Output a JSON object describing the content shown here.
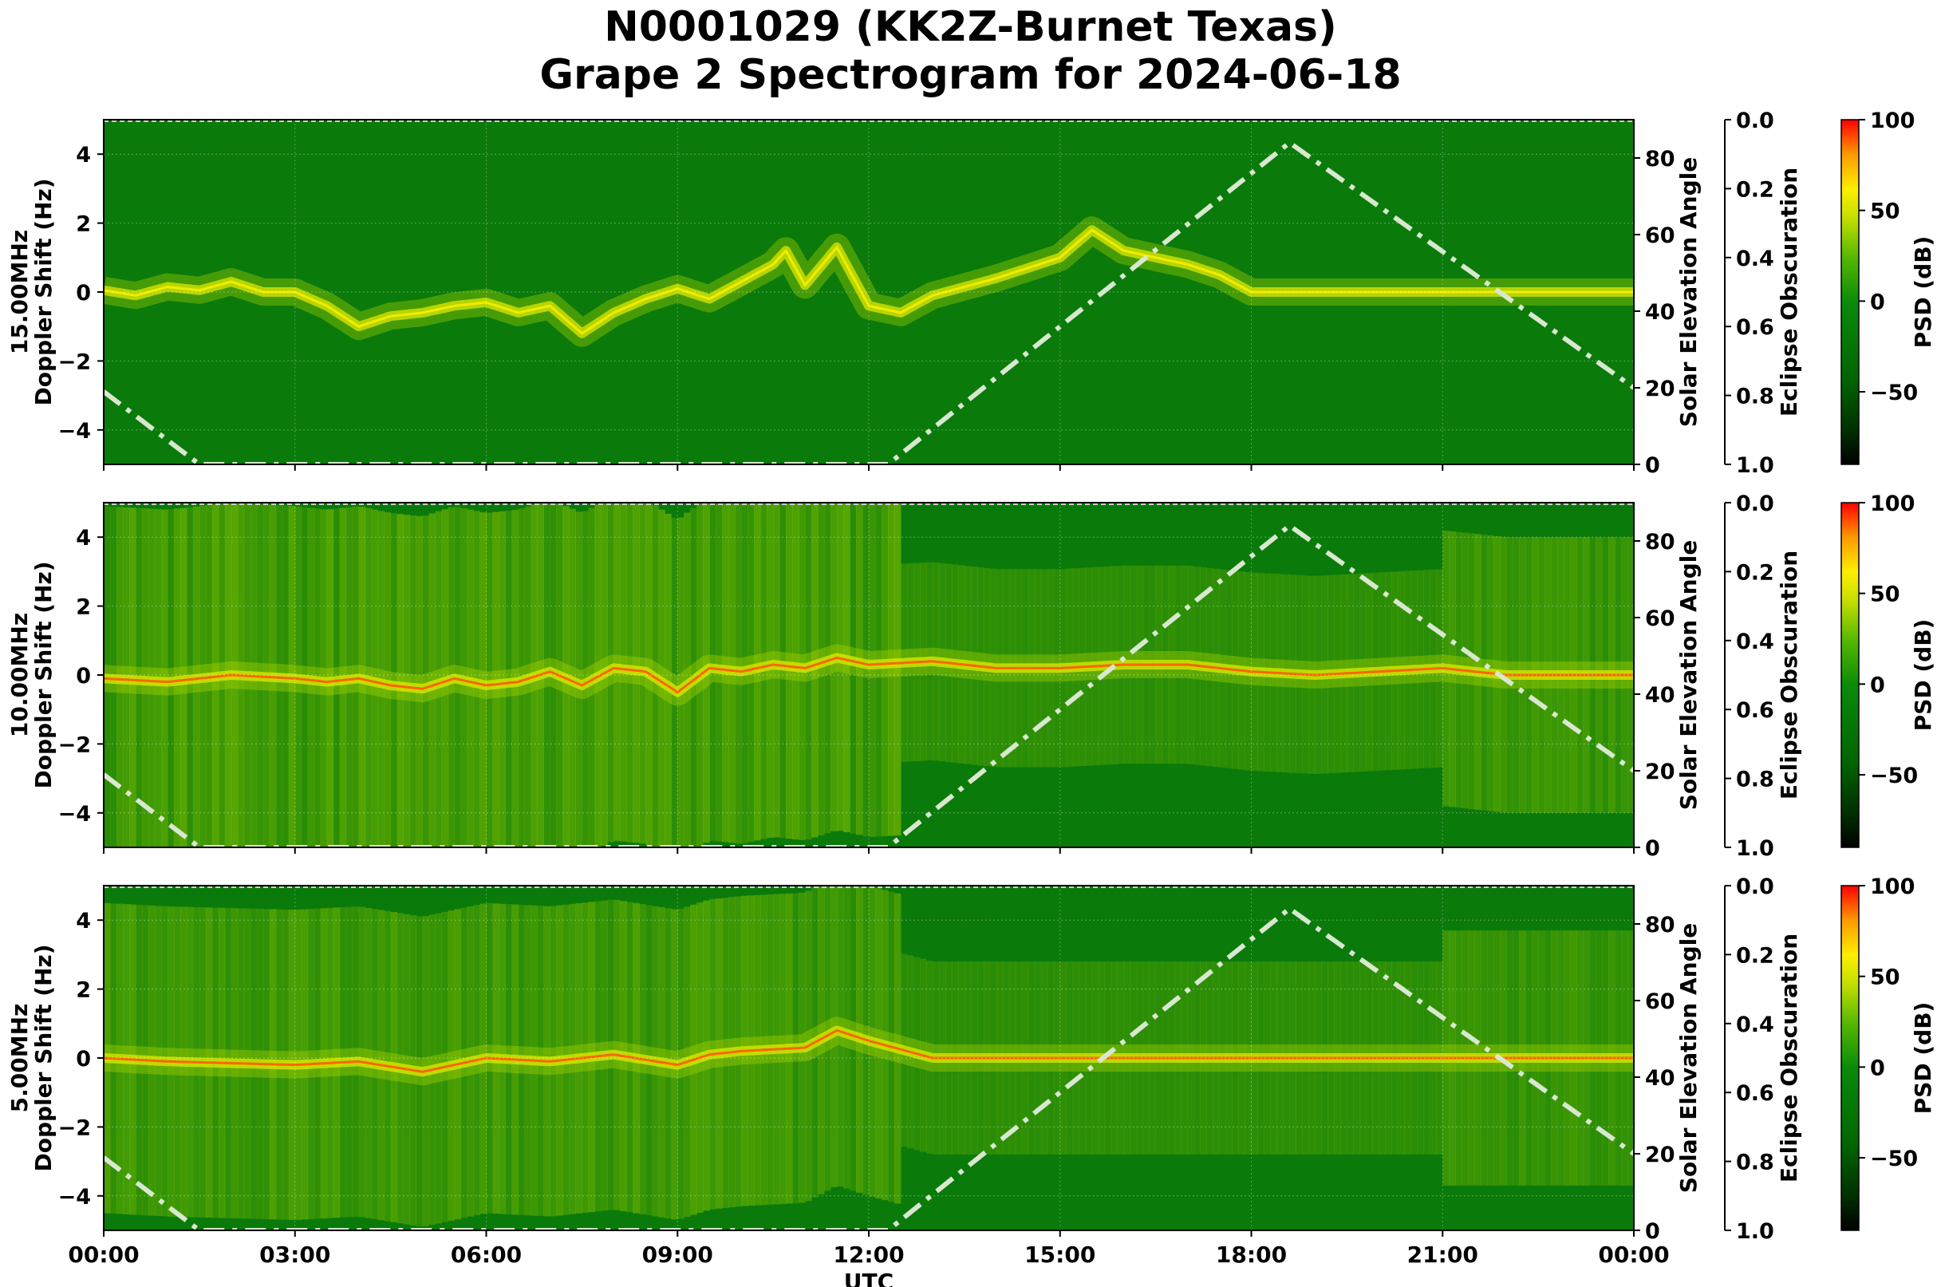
{
  "figure": {
    "title_line1": "N0001029 (KK2Z-Burnet Texas)",
    "title_line2": "Grape 2 Spectrogram for 2024-06-18",
    "x_axis_label": "UTC",
    "x_tick_labels": [
      "00:00",
      "03:00",
      "06:00",
      "09:00",
      "12:00",
      "15:00",
      "18:00",
      "21:00",
      "00:00"
    ]
  },
  "chart_data": [
    {
      "type": "heatmap",
      "frequency_label": "15.00MHz",
      "ylabel": "Doppler Shift (Hz)",
      "ylim": [
        -5,
        5
      ],
      "y_ticks": [
        -4,
        -2,
        0,
        2,
        4
      ],
      "y_tick_labels": [
        "−4",
        "−2",
        "0",
        "2",
        "4"
      ],
      "xlim_hours": [
        0,
        24
      ],
      "right_axis": {
        "label": "Solar Elevation Angle",
        "range": [
          0,
          90
        ],
        "ticks": [
          0,
          20,
          40,
          60,
          80
        ],
        "tick_labels": [
          "0",
          "20",
          "40",
          "60",
          "80"
        ]
      },
      "eclipse_axis": {
        "label": "Eclipse Obscuration",
        "range": [
          0.0,
          1.0
        ],
        "inverted": true,
        "tick_labels": [
          "0.0",
          "0.2",
          "0.4",
          "0.6",
          "0.8",
          "1.0"
        ]
      },
      "colorbar": {
        "label": "PSD (dB)",
        "range": [
          -90,
          100
        ],
        "ticks": [
          100,
          50,
          0,
          -50
        ],
        "tick_labels": [
          "100",
          "50",
          "0",
          "−50"
        ]
      },
      "noise_level": 0.0,
      "carrier_trace": [
        [
          0,
          0.05
        ],
        [
          0.5,
          -0.1
        ],
        [
          1,
          0.15
        ],
        [
          1.5,
          0.05
        ],
        [
          2,
          0.3
        ],
        [
          2.5,
          0.0
        ],
        [
          3,
          0.0
        ],
        [
          3.5,
          -0.4
        ],
        [
          4,
          -1.0
        ],
        [
          4.5,
          -0.7
        ],
        [
          5,
          -0.6
        ],
        [
          5.5,
          -0.4
        ],
        [
          6,
          -0.3
        ],
        [
          6.5,
          -0.6
        ],
        [
          7,
          -0.4
        ],
        [
          7.5,
          -1.2
        ],
        [
          8,
          -0.6
        ],
        [
          8.5,
          -0.2
        ],
        [
          9,
          0.1
        ],
        [
          9.5,
          -0.2
        ],
        [
          10,
          0.3
        ],
        [
          10.5,
          0.8
        ],
        [
          10.7,
          1.2
        ],
        [
          11,
          0.2
        ],
        [
          11.5,
          1.3
        ],
        [
          12,
          -0.4
        ],
        [
          12.5,
          -0.6
        ],
        [
          13,
          -0.1
        ],
        [
          14,
          0.4
        ],
        [
          15,
          1.0
        ],
        [
          15.5,
          1.8
        ],
        [
          16,
          1.2
        ],
        [
          16.5,
          1.0
        ],
        [
          17,
          0.8
        ],
        [
          17.5,
          0.5
        ],
        [
          18,
          0.0
        ],
        [
          19,
          0.0
        ],
        [
          20,
          0.0
        ],
        [
          24,
          0.0
        ]
      ],
      "solar_elevation": [
        [
          0,
          19
        ],
        [
          1.5,
          0
        ],
        [
          12.3,
          0
        ],
        [
          18.6,
          84
        ],
        [
          24,
          20
        ]
      ]
    },
    {
      "type": "heatmap",
      "frequency_label": "10.00MHz",
      "ylabel": "Doppler Shift (Hz)",
      "ylim": [
        -5,
        5
      ],
      "y_ticks": [
        -4,
        -2,
        0,
        2,
        4
      ],
      "y_tick_labels": [
        "−4",
        "−2",
        "0",
        "2",
        "4"
      ],
      "xlim_hours": [
        0,
        24
      ],
      "right_axis": {
        "label": "Solar Elevation Angle",
        "range": [
          0,
          90
        ],
        "ticks": [
          0,
          20,
          40,
          60,
          80
        ],
        "tick_labels": [
          "0",
          "20",
          "40",
          "60",
          "80"
        ]
      },
      "eclipse_axis": {
        "label": "Eclipse Obscuration",
        "range": [
          0.0,
          1.0
        ],
        "inverted": true,
        "tick_labels": [
          "0.0",
          "0.2",
          "0.4",
          "0.6",
          "0.8",
          "1.0"
        ]
      },
      "colorbar": {
        "label": "PSD (dB)",
        "range": [
          -90,
          100
        ],
        "ticks": [
          100,
          50,
          0,
          -50
        ],
        "tick_labels": [
          "100",
          "50",
          "0",
          "−50"
        ]
      },
      "noise_level": 1.0,
      "carrier_trace": [
        [
          0,
          -0.1
        ],
        [
          1,
          -0.2
        ],
        [
          2,
          0.0
        ],
        [
          3,
          -0.1
        ],
        [
          3.5,
          -0.2
        ],
        [
          4,
          -0.1
        ],
        [
          4.5,
          -0.3
        ],
        [
          5,
          -0.4
        ],
        [
          5.5,
          -0.1
        ],
        [
          6,
          -0.3
        ],
        [
          6.5,
          -0.2
        ],
        [
          7,
          0.1
        ],
        [
          7.5,
          -0.3
        ],
        [
          8,
          0.2
        ],
        [
          8.5,
          0.1
        ],
        [
          9,
          -0.5
        ],
        [
          9.5,
          0.2
        ],
        [
          10,
          0.1
        ],
        [
          10.5,
          0.3
        ],
        [
          11,
          0.2
        ],
        [
          11.5,
          0.5
        ],
        [
          12,
          0.3
        ],
        [
          13,
          0.4
        ],
        [
          14,
          0.2
        ],
        [
          15,
          0.2
        ],
        [
          16,
          0.3
        ],
        [
          17,
          0.3
        ],
        [
          18,
          0.1
        ],
        [
          19,
          0.0
        ],
        [
          20,
          0.1
        ],
        [
          21,
          0.2
        ],
        [
          22,
          0.0
        ],
        [
          23,
          0.0
        ],
        [
          24,
          0.0
        ]
      ],
      "solar_elevation": [
        [
          0,
          19
        ],
        [
          1.5,
          0
        ],
        [
          12.3,
          0
        ],
        [
          18.6,
          84
        ],
        [
          24,
          20
        ]
      ]
    },
    {
      "type": "heatmap",
      "frequency_label": "5.00MHz",
      "ylabel": "Doppler Shift (Hz)",
      "ylim": [
        -5,
        5
      ],
      "y_ticks": [
        -4,
        -2,
        0,
        2,
        4
      ],
      "y_tick_labels": [
        "−4",
        "−2",
        "0",
        "2",
        "4"
      ],
      "xlim_hours": [
        0,
        24
      ],
      "right_axis": {
        "label": "Solar Elevation Angle",
        "range": [
          0,
          90
        ],
        "ticks": [
          0,
          20,
          40,
          60,
          80
        ],
        "tick_labels": [
          "0",
          "20",
          "40",
          "60",
          "80"
        ]
      },
      "eclipse_axis": {
        "label": "Eclipse Obscuration",
        "range": [
          0.0,
          1.0
        ],
        "inverted": true,
        "tick_labels": [
          "0.0",
          "0.2",
          "0.4",
          "0.6",
          "0.8",
          "1.0"
        ]
      },
      "colorbar": {
        "label": "PSD (dB)",
        "range": [
          -90,
          100
        ],
        "ticks": [
          100,
          50,
          0,
          -50
        ],
        "tick_labels": [
          "100",
          "50",
          "0",
          "−50"
        ]
      },
      "noise_level": 0.8,
      "carrier_trace": [
        [
          0,
          0.0
        ],
        [
          1,
          -0.1
        ],
        [
          2,
          -0.15
        ],
        [
          3,
          -0.2
        ],
        [
          4,
          -0.1
        ],
        [
          5,
          -0.4
        ],
        [
          5.5,
          -0.2
        ],
        [
          6,
          0.0
        ],
        [
          7,
          -0.1
        ],
        [
          8,
          0.1
        ],
        [
          9,
          -0.2
        ],
        [
          9.5,
          0.1
        ],
        [
          10,
          0.2
        ],
        [
          11,
          0.3
        ],
        [
          11.5,
          0.8
        ],
        [
          12,
          0.5
        ],
        [
          13,
          0.0
        ],
        [
          24,
          0.0
        ]
      ],
      "solar_elevation": [
        [
          0,
          19
        ],
        [
          1.5,
          0
        ],
        [
          12.3,
          0
        ],
        [
          18.6,
          84
        ],
        [
          24,
          20
        ]
      ]
    }
  ],
  "colors": {
    "background_green": "#0a7a0a",
    "colormap": [
      "#000000",
      "#004800",
      "#008000",
      "#33aa00",
      "#88cc00",
      "#e6e600",
      "#ffaa00",
      "#ff5500",
      "#ff0000"
    ],
    "solar_curve": "#d8e8d0"
  }
}
